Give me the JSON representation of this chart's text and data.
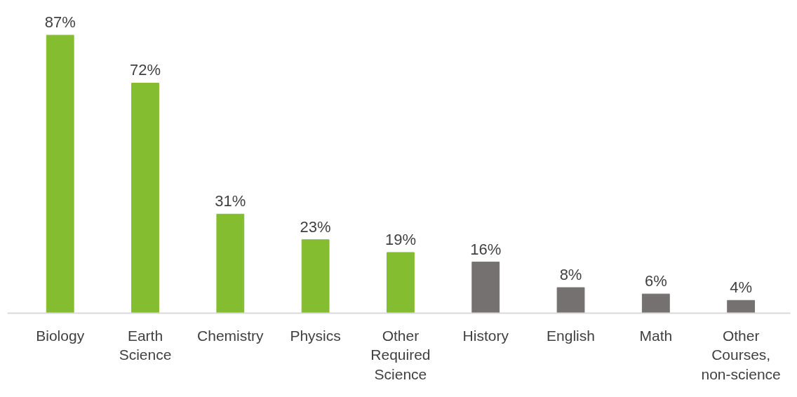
{
  "chart_data": {
    "type": "bar",
    "categories": [
      "Biology",
      "Earth Science",
      "Chemistry",
      "Physics",
      "Other Required Science",
      "History",
      "English",
      "Math",
      "Other Courses, non-science"
    ],
    "values": [
      87,
      72,
      31,
      23,
      19,
      16,
      8,
      6,
      4
    ],
    "colors": [
      "#84bd2f",
      "#84bd2f",
      "#84bd2f",
      "#84bd2f",
      "#84bd2f",
      "#767171",
      "#767171",
      "#767171",
      "#767171"
    ],
    "value_labels": [
      "87%",
      "72%",
      "31%",
      "23%",
      "19%",
      "16%",
      "8%",
      "6%",
      "4%"
    ],
    "tick_labels": "x",
    "grid": false
  }
}
